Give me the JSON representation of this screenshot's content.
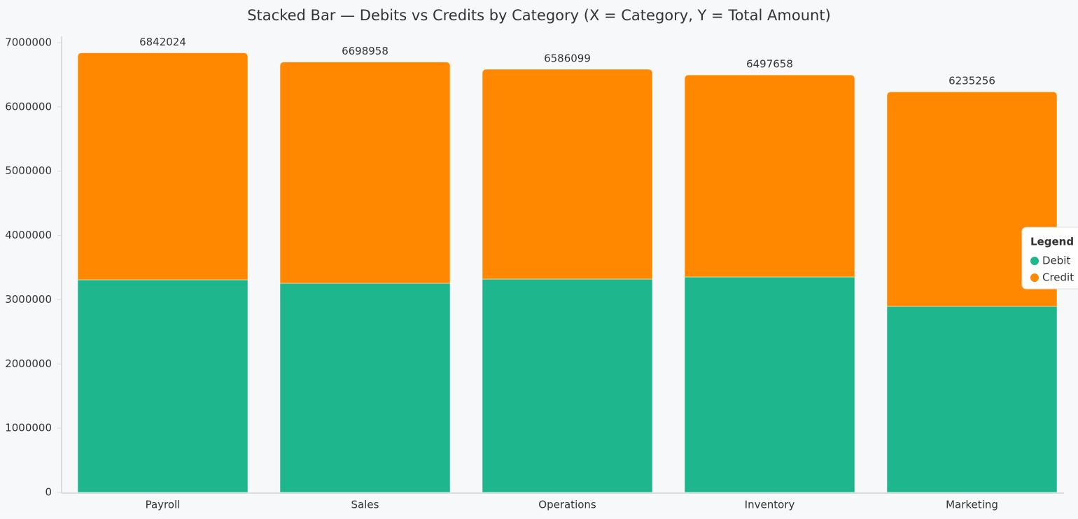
{
  "chart_data": {
    "type": "stacked_bar",
    "title": "Stacked Bar — Debits vs Credits by Category (X = Category, Y = Total Amount)",
    "categories": [
      "Payroll",
      "Sales",
      "Operations",
      "Inventory",
      "Marketing"
    ],
    "series": [
      {
        "name": "Debit",
        "color": "#1eb68d",
        "values": [
          3310000,
          3255000,
          3320000,
          3353000,
          2896000
        ]
      },
      {
        "name": "Credit",
        "color": "#ff8800",
        "values": [
          3532024,
          3443958,
          3266099,
          3144658,
          3339256
        ]
      }
    ],
    "totals": [
      6842024,
      6698958,
      6586099,
      6497658,
      6235256
    ],
    "ylim": [
      0,
      7000000
    ],
    "yticks": [
      0,
      1000000,
      2000000,
      3000000,
      4000000,
      5000000,
      6000000,
      7000000
    ],
    "grid": false,
    "legend_title": "Legend",
    "legend_position": "right"
  }
}
